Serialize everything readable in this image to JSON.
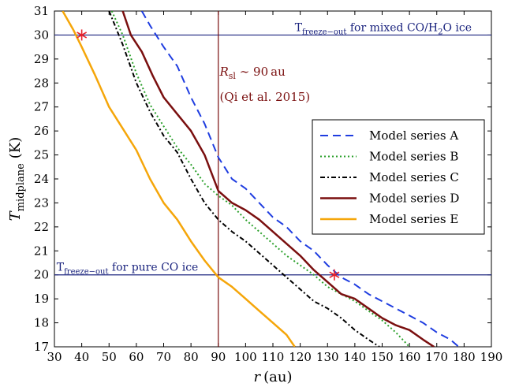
{
  "chart_data": {
    "type": "line",
    "xlabel_var": "r",
    "xlabel_unit": "(au)",
    "ylabel_main": "T",
    "ylabel_sub": "midplane",
    "ylabel_unit": "(K)",
    "xlim": [
      30,
      190
    ],
    "ylim": [
      17,
      31
    ],
    "x_ticks": [
      30,
      40,
      50,
      60,
      70,
      80,
      90,
      100,
      110,
      120,
      130,
      140,
      150,
      160,
      170,
      180,
      190
    ],
    "y_ticks": [
      17,
      18,
      19,
      20,
      21,
      22,
      23,
      24,
      25,
      26,
      27,
      28,
      29,
      30,
      31
    ],
    "grid": false,
    "legend_position": "right",
    "hlines": [
      {
        "y": 30,
        "label_main": "T",
        "label_sub": "freeze−out",
        "label_rest": " for mixed CO/H",
        "label_sub2": "2",
        "label_end": "O ice",
        "color": "#1a237e"
      },
      {
        "y": 20,
        "label_main": "T",
        "label_sub": "freeze−out",
        "label_rest": " for pure CO ice",
        "color": "#1a237e"
      }
    ],
    "vline": {
      "x": 90,
      "color": "#7a0f0f",
      "label_var": "R",
      "label_sub": "sl",
      "label_rest": " ∼ 90 au",
      "label_ref": "(Qi et al. 2015)"
    },
    "markers": [
      {
        "x": 40,
        "y": 30,
        "color": "#e8202a"
      },
      {
        "x": 132.5,
        "y": 20,
        "color": "#e8202a"
      }
    ],
    "series": [
      {
        "name": "Model series A",
        "color": "#1f3de0",
        "dash": "10,6",
        "width": 2,
        "x": [
          62,
          65,
          70,
          75,
          80,
          85,
          90,
          95,
          100,
          105,
          110,
          115,
          120,
          125,
          130,
          135,
          140,
          145,
          150,
          155,
          160,
          165,
          170,
          175,
          178
        ],
        "y": [
          31,
          30.4,
          29.5,
          28.7,
          27.4,
          26.3,
          24.9,
          24.0,
          23.6,
          23.0,
          22.4,
          22.0,
          21.4,
          21.0,
          20.4,
          19.9,
          19.6,
          19.2,
          18.9,
          18.6,
          18.3,
          18.0,
          17.6,
          17.3,
          17.0
        ]
      },
      {
        "name": "Model series B",
        "color": "#2ca02c",
        "dash": "2,3",
        "width": 2,
        "x": [
          51,
          55,
          60,
          65,
          70,
          75,
          80,
          85,
          90,
          95,
          100,
          105,
          110,
          115,
          120,
          125,
          130,
          135,
          140,
          145,
          150,
          155,
          160
        ],
        "y": [
          31,
          30.0,
          28.4,
          27.1,
          26.2,
          25.3,
          24.6,
          23.8,
          23.3,
          22.9,
          22.3,
          21.8,
          21.3,
          20.8,
          20.4,
          20.0,
          19.5,
          19.2,
          18.9,
          18.5,
          18.1,
          17.6,
          17.0
        ]
      },
      {
        "name": "Model series C",
        "color": "#000000",
        "dash": "6,3,2,3",
        "width": 2,
        "x": [
          50,
          55,
          60,
          65,
          70,
          75,
          80,
          85,
          90,
          95,
          100,
          105,
          110,
          115,
          120,
          125,
          130,
          135,
          140,
          145,
          149
        ],
        "y": [
          31,
          29.6,
          28.0,
          26.8,
          25.8,
          25.1,
          24.0,
          23.0,
          22.3,
          21.8,
          21.4,
          20.9,
          20.4,
          19.9,
          19.4,
          18.9,
          18.6,
          18.2,
          17.7,
          17.3,
          17.0
        ]
      },
      {
        "name": "Model series D",
        "color": "#7a0f0f",
        "dash": "",
        "width": 2.5,
        "x": [
          55,
          58,
          62,
          66,
          70,
          75,
          80,
          85,
          90,
          95,
          100,
          105,
          110,
          115,
          120,
          125,
          130,
          135,
          140,
          145,
          150,
          155,
          160,
          165,
          169
        ],
        "y": [
          31,
          30.0,
          29.3,
          28.3,
          27.4,
          26.7,
          26.0,
          25.0,
          23.5,
          23.0,
          22.7,
          22.3,
          21.8,
          21.3,
          20.8,
          20.2,
          19.7,
          19.2,
          19.0,
          18.6,
          18.2,
          17.9,
          17.7,
          17.3,
          17.0
        ]
      },
      {
        "name": "Model series E",
        "color": "#f5a60a",
        "dash": "",
        "width": 2.5,
        "x": [
          33,
          37,
          40,
          45,
          50,
          55,
          60,
          65,
          70,
          75,
          80,
          85,
          90,
          95,
          100,
          105,
          110,
          115,
          118
        ],
        "y": [
          31,
          30.2,
          29.5,
          28.3,
          27.0,
          26.1,
          25.2,
          24.0,
          23.0,
          22.3,
          21.4,
          20.6,
          19.9,
          19.5,
          19.0,
          18.5,
          18.0,
          17.5,
          17.0
        ]
      }
    ]
  }
}
